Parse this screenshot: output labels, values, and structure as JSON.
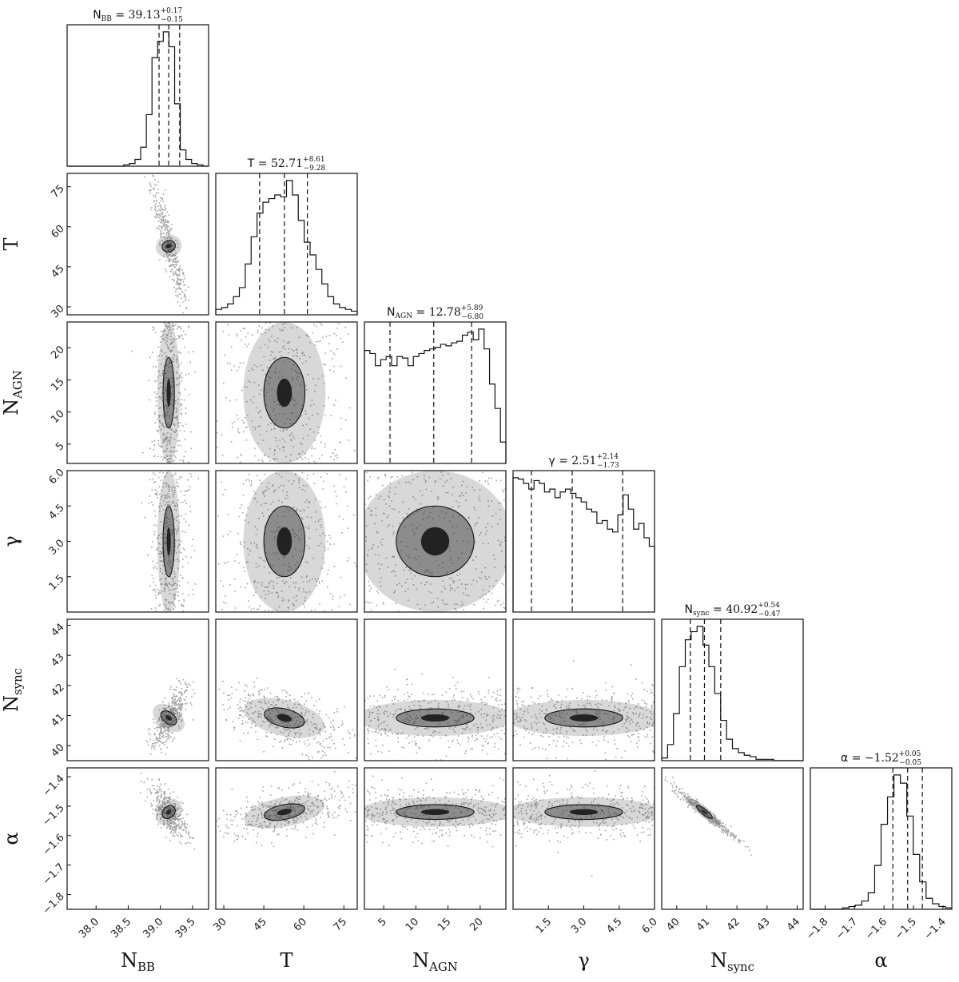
{
  "chart_data": {
    "type": "corner",
    "parameters": [
      {
        "key": "NBB",
        "label_main": "N",
        "label_sub": "BB",
        "range": [
          37.55,
          39.75
        ],
        "ticks": [
          38.0,
          38.5,
          39.0,
          39.5
        ],
        "tick_labels": [
          "38.0",
          "38.5",
          "39.0",
          "39.5"
        ],
        "median": 39.13,
        "plus": 0.17,
        "minus": 0.15,
        "title_main": "N",
        "title_sub": "BB",
        "title_eq": " = 39.13",
        "title_plus": "+0.17",
        "title_minus": "−0.15"
      },
      {
        "key": "T",
        "label_main": "T",
        "label_sub": "",
        "range": [
          27,
          80
        ],
        "ticks": [
          30,
          45,
          60,
          75
        ],
        "tick_labels": [
          "30",
          "45",
          "60",
          "75"
        ],
        "median": 52.71,
        "plus": 8.61,
        "minus": 9.28,
        "title_main": "T",
        "title_sub": "",
        "title_eq": " = 52.71",
        "title_plus": "+8.61",
        "title_minus": "−9.28"
      },
      {
        "key": "NAGN",
        "label_main": "N",
        "label_sub": "AGN",
        "range": [
          2,
          24
        ],
        "ticks": [
          5,
          10,
          15,
          20
        ],
        "tick_labels": [
          "5",
          "10",
          "15",
          "20"
        ],
        "median": 12.78,
        "plus": 5.89,
        "minus": 6.8,
        "title_main": "N",
        "title_sub": "AGN",
        "title_eq": " = 12.78",
        "title_plus": "+5.89",
        "title_minus": "−6.80"
      },
      {
        "key": "gamma",
        "label_main": "γ",
        "label_sub": "",
        "range": [
          0,
          6
        ],
        "ticks": [
          1.5,
          3.0,
          4.5,
          6.0
        ],
        "tick_labels": [
          "1.5",
          "3.0",
          "4.5",
          "6.0"
        ],
        "median": 2.51,
        "plus": 2.14,
        "minus": 1.73,
        "title_main": "γ",
        "title_sub": "",
        "title_eq": " = 2.51",
        "title_plus": "+2.14",
        "title_minus": "−1.73"
      },
      {
        "key": "Nsync",
        "label_main": "N",
        "label_sub": "sync",
        "range": [
          39.5,
          44.2
        ],
        "ticks": [
          40,
          41,
          42,
          43,
          44
        ],
        "tick_labels": [
          "40",
          "41",
          "42",
          "43",
          "44"
        ],
        "median": 40.92,
        "plus": 0.54,
        "minus": 0.47,
        "title_main": "N",
        "title_sub": "sync",
        "title_eq": " = 40.92",
        "title_plus": "+0.54",
        "title_minus": "−0.47"
      },
      {
        "key": "alpha",
        "label_main": "α",
        "label_sub": "",
        "range": [
          -1.85,
          -1.37
        ],
        "ticks": [
          -1.8,
          -1.7,
          -1.6,
          -1.5,
          -1.4
        ],
        "tick_labels": [
          "−1.8",
          "−1.7",
          "−1.6",
          "−1.5",
          "−1.4"
        ],
        "median": -1.52,
        "plus": 0.05,
        "minus": 0.05,
        "title_main": "α",
        "title_sub": "",
        "title_eq": " = −1.52",
        "title_plus": "+0.05",
        "title_minus": "−0.05"
      }
    ],
    "histograms": [
      [
        0,
        0,
        0,
        0,
        0,
        0,
        0,
        0,
        0,
        0,
        1,
        2,
        5,
        14,
        38,
        80,
        92,
        99,
        88,
        46,
        12,
        5,
        2,
        1,
        0
      ],
      [
        3,
        4,
        6,
        10,
        15,
        28,
        43,
        56,
        62,
        64,
        66,
        65,
        74,
        66,
        52,
        40,
        33,
        25,
        17,
        10,
        6,
        4,
        3,
        2
      ],
      [
        74,
        72,
        64,
        68,
        70,
        64,
        70,
        69,
        64,
        70,
        72,
        74,
        75,
        76,
        78,
        77,
        79,
        80,
        84,
        86,
        81,
        88,
        75,
        52,
        36,
        14
      ],
      [
        94,
        93,
        90,
        86,
        92,
        90,
        84,
        86,
        80,
        84,
        86,
        83,
        80,
        77,
        72,
        70,
        62,
        64,
        58,
        56,
        68,
        82,
        72,
        58,
        62,
        52,
        46
      ],
      [
        2,
        12,
        35,
        70,
        90,
        96,
        100,
        86,
        70,
        50,
        30,
        16,
        9,
        6,
        4,
        3,
        1,
        1,
        1,
        0,
        0,
        0,
        0,
        0
      ],
      [
        0,
        0,
        0,
        0,
        0,
        1,
        2,
        3,
        6,
        12,
        32,
        62,
        82,
        98,
        92,
        68,
        40,
        20,
        8,
        4,
        2,
        1
      ]
    ],
    "pair_axes": {
      "primary": [
        39.13,
        52.71,
        12.78,
        2.51,
        40.92,
        -1.52
      ],
      "spread": [
        0.08,
        7.0,
        5.5,
        1.8,
        0.3,
        0.025
      ]
    }
  }
}
